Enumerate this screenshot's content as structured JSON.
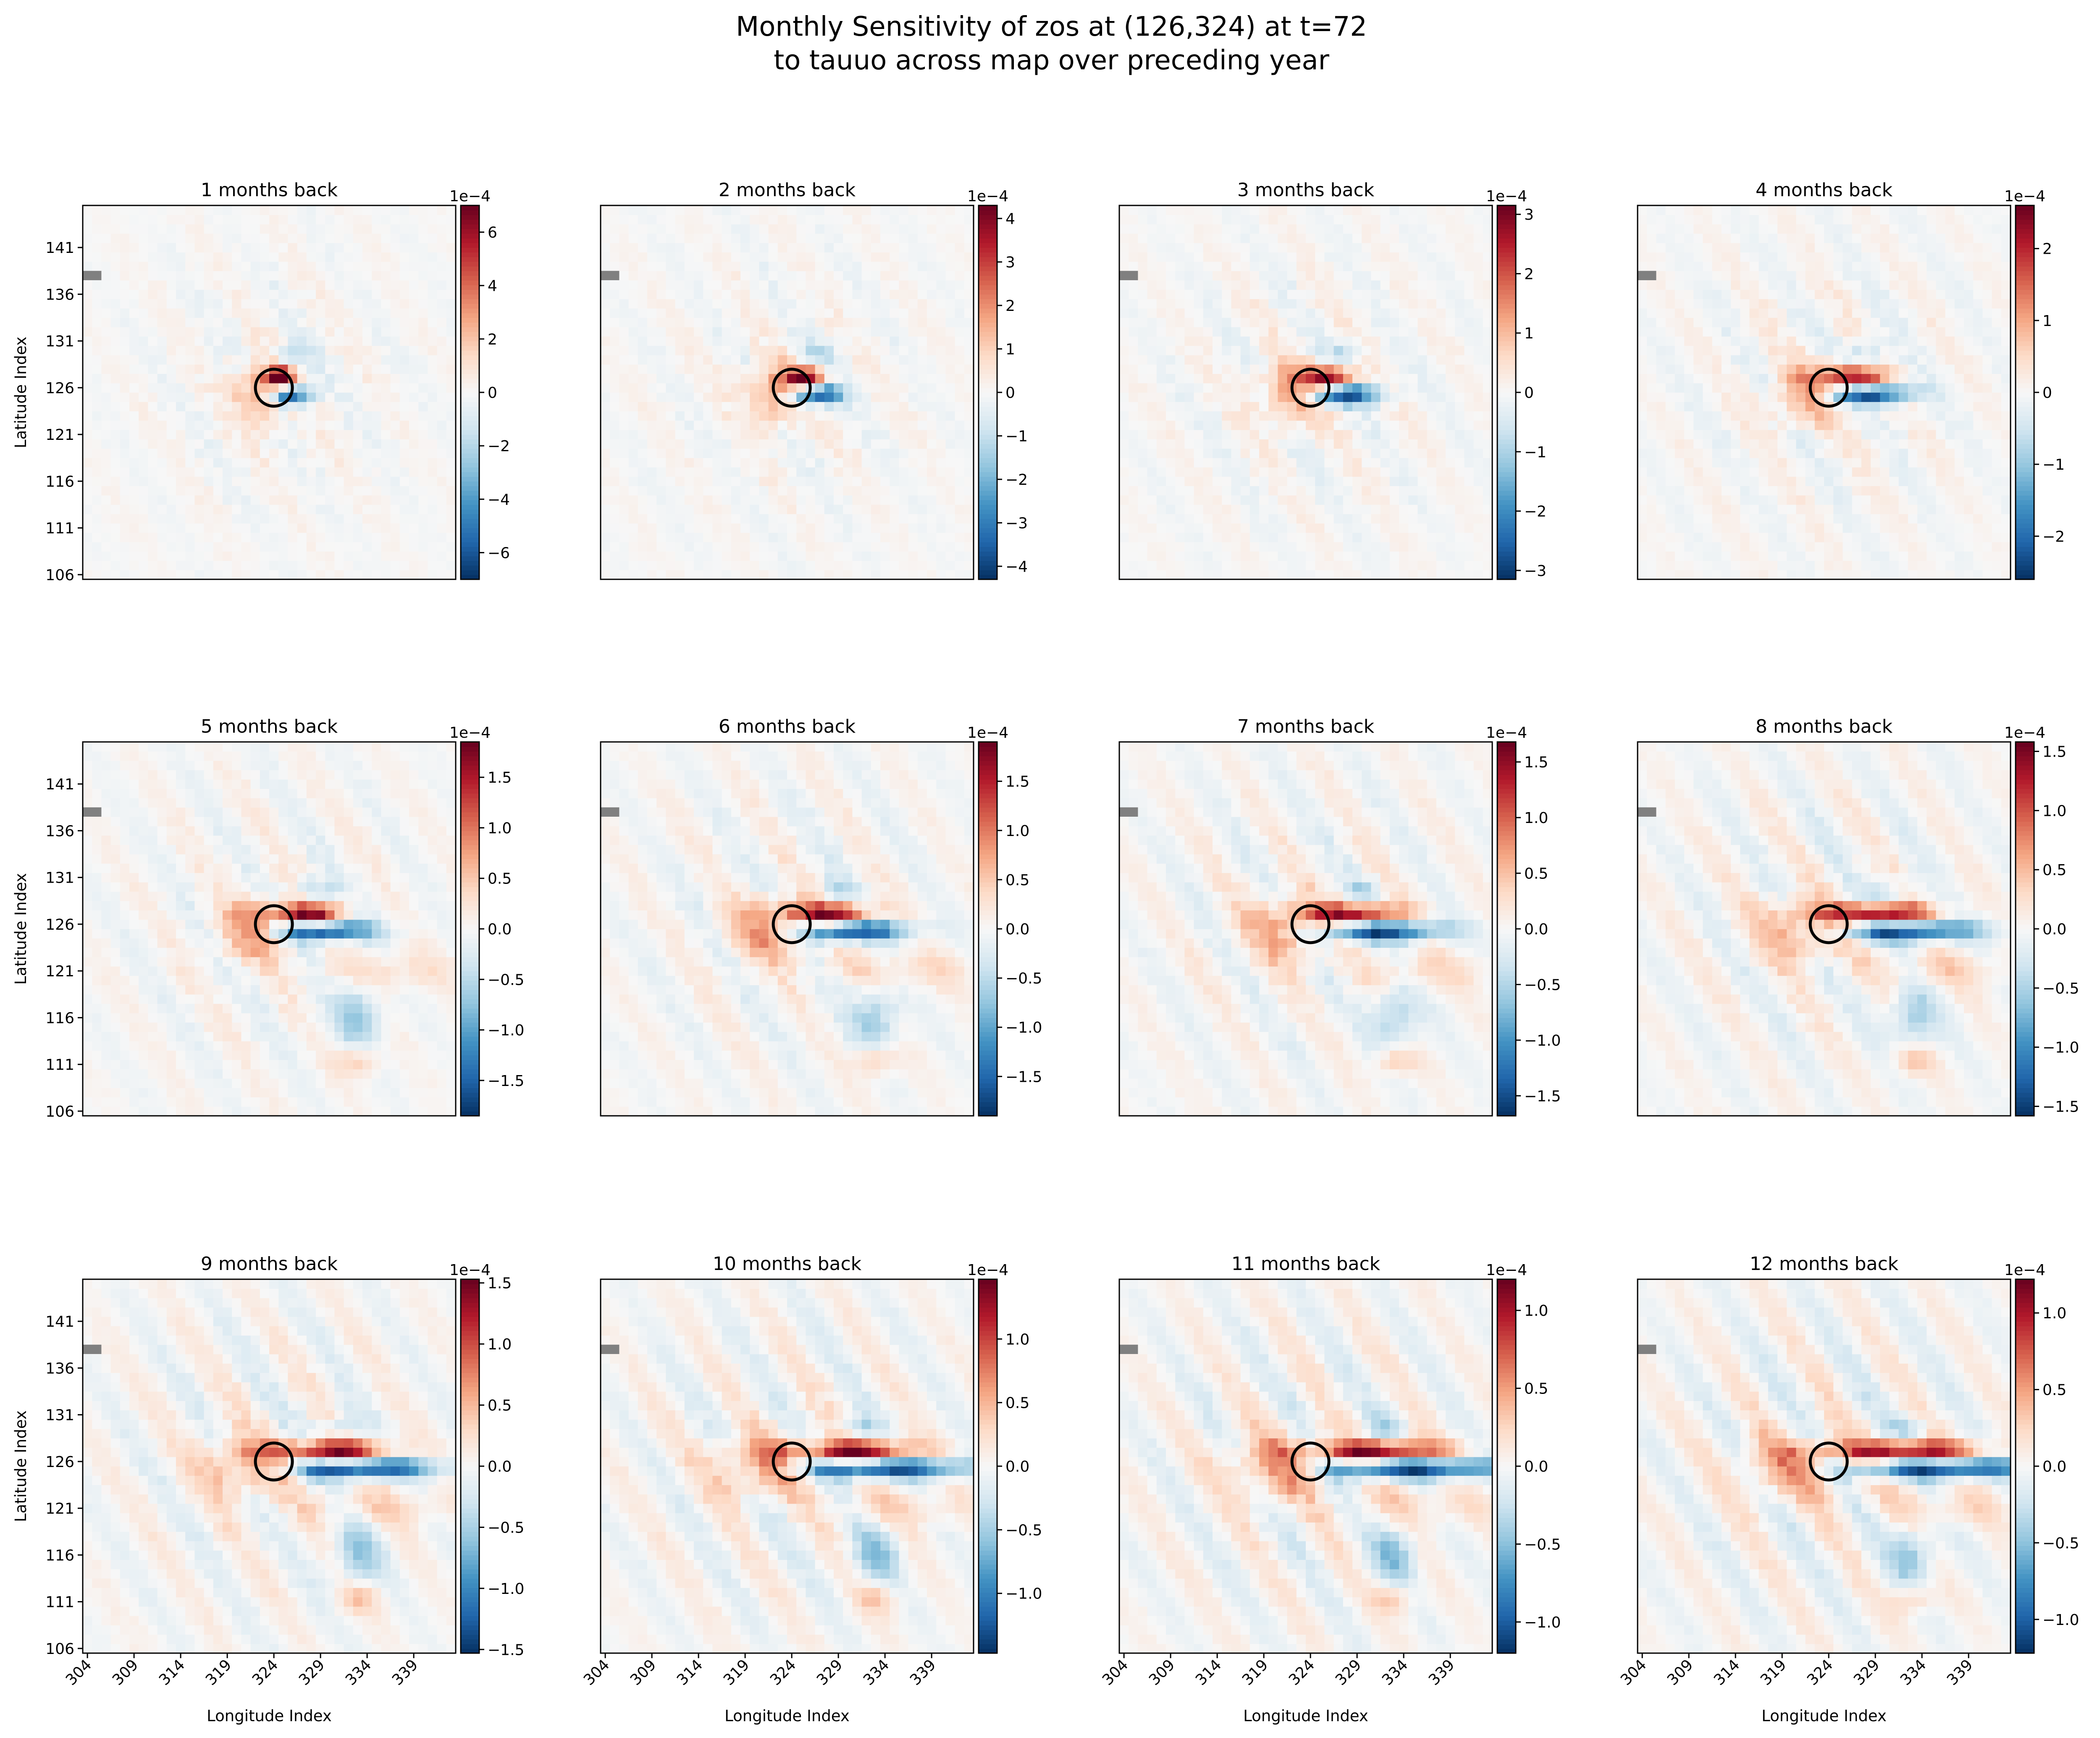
{
  "figure": {
    "title_line1": "Monthly Sensitivity of zos at (126,324) at t=72",
    "title_line2": "to tauuo across map over preceding year"
  },
  "colors": {
    "colormap": "RdBu_r",
    "neutral": "#f7f7f7",
    "land_mask": "#808080",
    "marker_circle": "#000000"
  },
  "chart_data": {
    "type": "heatmap",
    "layout": "3 rows x 4 columns",
    "grid": false,
    "xlabel": "Longitude Index",
    "ylabel": "Latitude Index",
    "x_ticks": [
      "304",
      "309",
      "314",
      "319",
      "324",
      "329",
      "334",
      "339"
    ],
    "y_ticks": [
      "141",
      "136",
      "131",
      "126",
      "121",
      "116",
      "111",
      "106"
    ],
    "x_range": [
      304,
      343
    ],
    "y_range": [
      106,
      145
    ],
    "marker": {
      "shape": "circle",
      "lon": 324,
      "lat": 126
    },
    "colorbar_multiplier": "1e−4",
    "panels": [
      {
        "title": "1 months back",
        "vmax": 7.0,
        "ticks": [
          "6",
          "4",
          "2",
          "0",
          "−2",
          "−4",
          "−6"
        ]
      },
      {
        "title": "2 months back",
        "vmax": 4.3,
        "ticks": [
          "4",
          "3",
          "2",
          "1",
          "0",
          "−1",
          "−2",
          "−3",
          "−4"
        ]
      },
      {
        "title": "3 months back",
        "vmax": 3.15,
        "ticks": [
          "3",
          "2",
          "1",
          "0",
          "−1",
          "−2",
          "−3"
        ]
      },
      {
        "title": "4 months back",
        "vmax": 2.6,
        "ticks": [
          "2",
          "1",
          "0",
          "−1",
          "−2"
        ]
      },
      {
        "title": "5 months back",
        "vmax": 1.85,
        "ticks": [
          "1.5",
          "1.0",
          "0.5",
          "0.0",
          "−0.5",
          "−1.0",
          "−1.5"
        ]
      },
      {
        "title": "6 months back",
        "vmax": 1.9,
        "ticks": [
          "1.5",
          "1.0",
          "0.5",
          "0.0",
          "−0.5",
          "−1.0",
          "−1.5"
        ]
      },
      {
        "title": "7 months back",
        "vmax": 1.68,
        "ticks": [
          "1.5",
          "1.0",
          "0.5",
          "0.0",
          "−0.5",
          "−1.0",
          "−1.5"
        ]
      },
      {
        "title": "8 months back",
        "vmax": 1.58,
        "ticks": [
          "1.5",
          "1.0",
          "0.5",
          "0.0",
          "−0.5",
          "−1.0",
          "−1.5"
        ]
      },
      {
        "title": "9 months back",
        "vmax": 1.53,
        "ticks": [
          "1.5",
          "1.0",
          "0.5",
          "0.0",
          "−0.5",
          "−1.0",
          "−1.5"
        ]
      },
      {
        "title": "10 months back",
        "vmax": 1.47,
        "ticks": [
          "1.0",
          "0.5",
          "0.0",
          "−0.5",
          "−1.0"
        ]
      },
      {
        "title": "11 months back",
        "vmax": 1.2,
        "ticks": [
          "1.0",
          "0.5",
          "0.0",
          "−0.5",
          "−1.0"
        ]
      },
      {
        "title": "12 months back",
        "vmax": 1.22,
        "ticks": [
          "1.0",
          "0.5",
          "0.0",
          "−0.5",
          "−1.0"
        ]
      }
    ]
  }
}
